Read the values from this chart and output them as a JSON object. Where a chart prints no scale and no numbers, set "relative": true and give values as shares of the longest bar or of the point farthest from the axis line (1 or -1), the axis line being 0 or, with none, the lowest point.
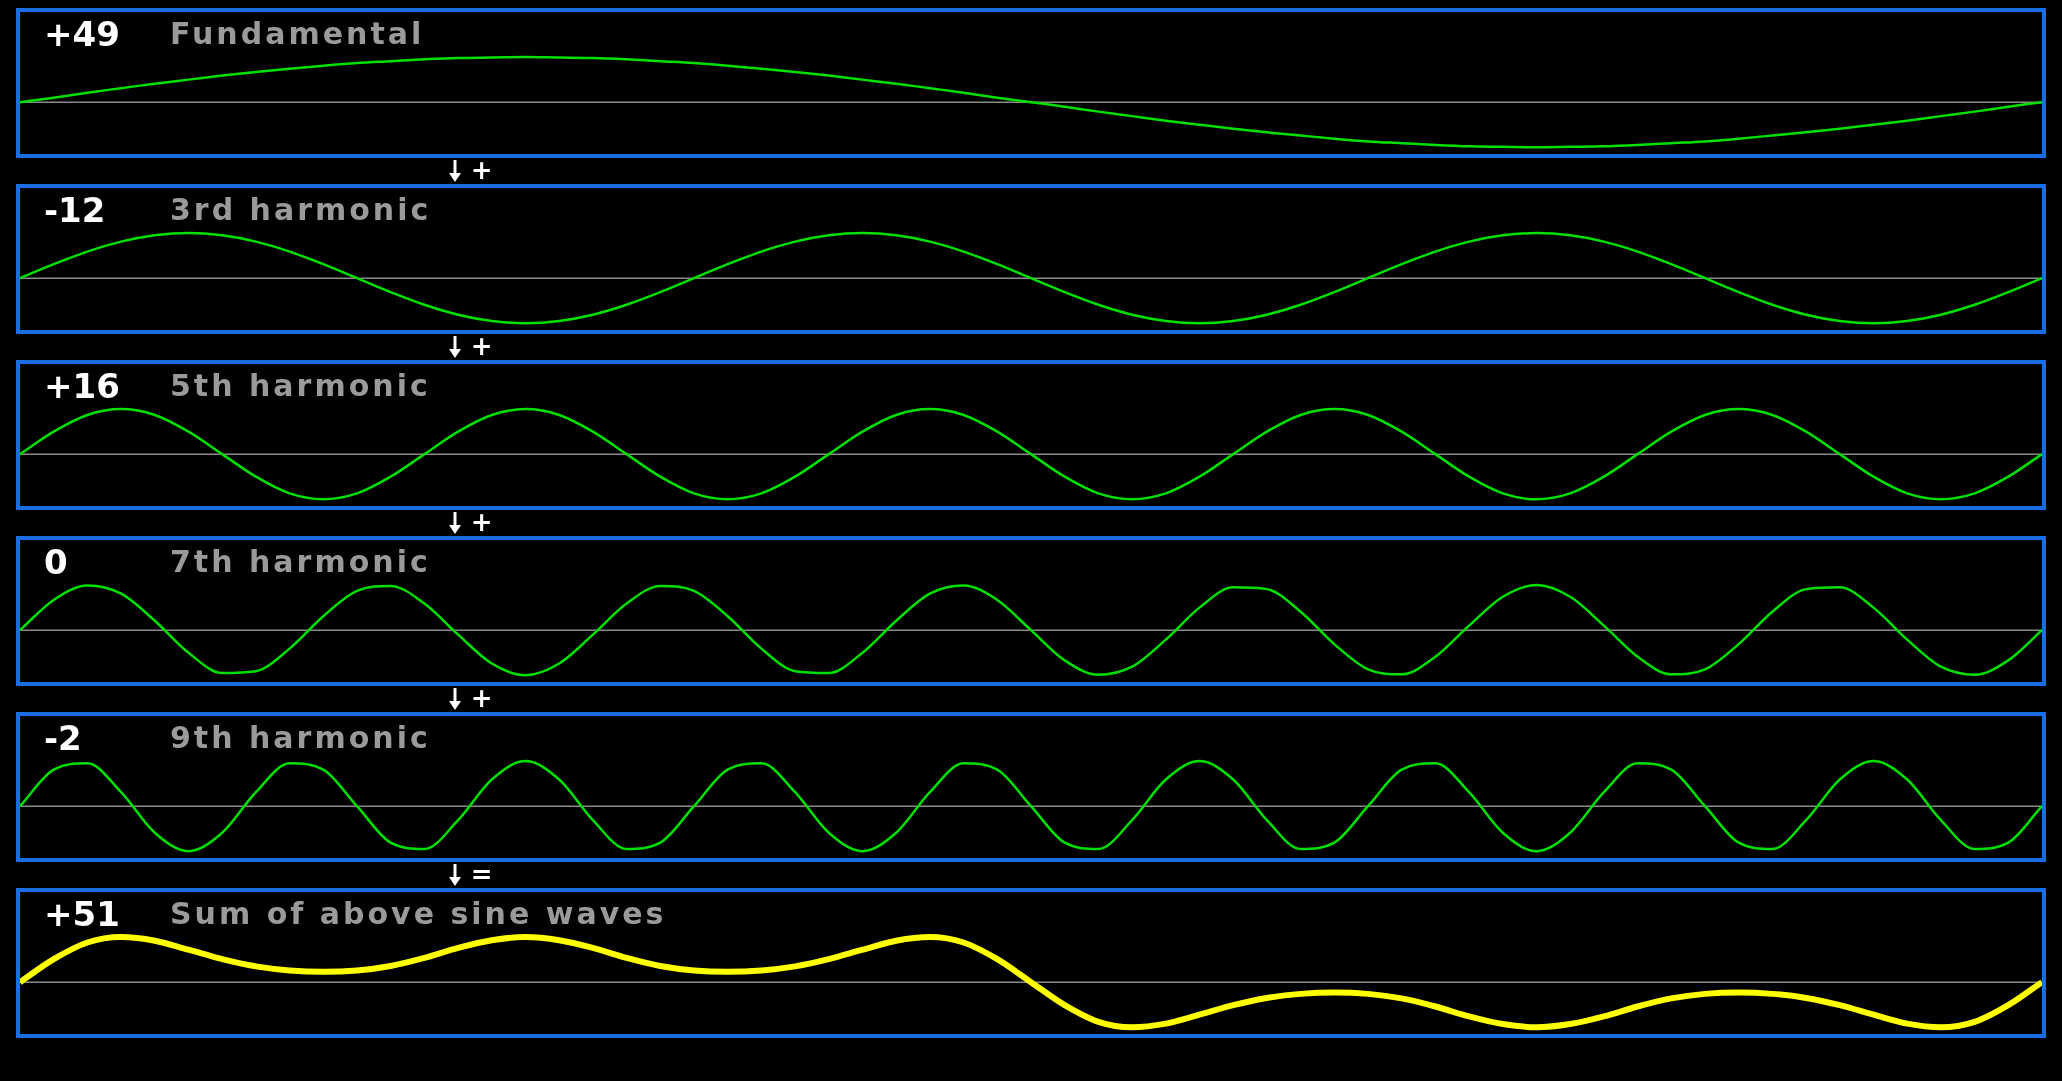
{
  "chart_data": [
    {
      "type": "line",
      "title": "Fundamental",
      "relative": true,
      "annotations": [
        "+49",
        "+"
      ],
      "marker": "none",
      "categories": [
        null,
        null,
        null,
        null,
        null,
        null,
        null,
        null,
        null,
        null,
        null,
        null,
        null,
        null,
        null,
        null,
        null,
        null,
        null,
        null,
        null,
        null,
        null,
        null,
        null,
        null,
        null,
        null,
        null,
        null,
        null,
        null,
        null,
        null,
        null,
        null,
        null,
        null,
        null,
        null,
        null,
        null,
        null,
        null,
        null,
        null,
        null,
        null,
        null,
        null,
        null,
        null,
        null,
        null,
        null,
        null,
        null,
        null,
        null,
        null,
        null
      ],
      "series": [
        {
          "color": "#00e000",
          "values": [
            0,
            0.1,
            0.21,
            0.31,
            0.41,
            0.5,
            0.59,
            0.67,
            0.74,
            0.81,
            0.87,
            0.91,
            0.95,
            0.98,
            0.99,
            1,
            0.99,
            0.98,
            0.95,
            0.91,
            0.87,
            0.81,
            0.74,
            0.67,
            0.59,
            0.5,
            0.41,
            0.31,
            0.21,
            0.1,
            0,
            -0.1,
            -0.21,
            -0.31,
            -0.41,
            -0.5,
            -0.59,
            -0.67,
            -0.74,
            -0.81,
            -0.87,
            -0.91,
            -0.95,
            -0.98,
            -0.99,
            -1,
            -0.99,
            -0.98,
            -0.95,
            -0.91,
            -0.87,
            -0.81,
            -0.74,
            -0.67,
            -0.59,
            -0.5,
            -0.41,
            -0.31,
            -0.21,
            -0.1,
            0
          ]
        }
      ]
    },
    {
      "type": "line",
      "title": "3rd harmonic",
      "relative": true,
      "annotations": [
        "-12",
        "+"
      ],
      "marker": "none",
      "categories": [
        null,
        null,
        null,
        null,
        null,
        null,
        null,
        null,
        null,
        null,
        null,
        null,
        null,
        null,
        null,
        null,
        null,
        null,
        null,
        null,
        null,
        null,
        null,
        null,
        null,
        null,
        null,
        null,
        null,
        null,
        null,
        null,
        null,
        null,
        null,
        null,
        null,
        null,
        null,
        null,
        null,
        null,
        null,
        null,
        null,
        null,
        null,
        null,
        null,
        null,
        null,
        null,
        null,
        null,
        null,
        null,
        null,
        null,
        null,
        null,
        null
      ],
      "series": [
        {
          "color": "#00e000",
          "values": [
            0,
            0.31,
            0.59,
            0.81,
            0.95,
            1,
            0.95,
            0.81,
            0.59,
            0.31,
            0,
            -0.31,
            -0.59,
            -0.81,
            -0.95,
            -1,
            -0.95,
            -0.81,
            -0.59,
            -0.31,
            0,
            0.31,
            0.59,
            0.81,
            0.95,
            1,
            0.95,
            0.81,
            0.59,
            0.31,
            0,
            -0.31,
            -0.59,
            -0.81,
            -0.95,
            -1,
            -0.95,
            -0.81,
            -0.59,
            -0.31,
            0,
            0.31,
            0.59,
            0.81,
            0.95,
            1,
            0.95,
            0.81,
            0.59,
            0.31,
            0,
            -0.31,
            -0.59,
            -0.81,
            -0.95,
            -1,
            -0.95,
            -0.81,
            -0.59,
            -0.31,
            0
          ]
        }
      ]
    },
    {
      "type": "line",
      "title": "5th harmonic",
      "relative": true,
      "annotations": [
        "+16",
        "+"
      ],
      "marker": "none",
      "categories": [
        null,
        null,
        null,
        null,
        null,
        null,
        null,
        null,
        null,
        null,
        null,
        null,
        null,
        null,
        null,
        null,
        null,
        null,
        null,
        null,
        null,
        null,
        null,
        null,
        null,
        null,
        null,
        null,
        null,
        null,
        null,
        null,
        null,
        null,
        null,
        null,
        null,
        null,
        null,
        null,
        null,
        null,
        null,
        null,
        null,
        null,
        null,
        null,
        null,
        null,
        null,
        null,
        null,
        null,
        null,
        null,
        null,
        null,
        null,
        null,
        null
      ],
      "series": [
        {
          "color": "#00e000",
          "values": [
            0,
            0.5,
            0.87,
            1,
            0.87,
            0.5,
            0,
            -0.5,
            -0.87,
            -1,
            -0.87,
            -0.5,
            0,
            0.5,
            0.87,
            1,
            0.87,
            0.5,
            0,
            -0.5,
            -0.87,
            -1,
            -0.87,
            -0.5,
            0,
            0.5,
            0.87,
            1,
            0.87,
            0.5,
            0,
            -0.5,
            -0.87,
            -1,
            -0.87,
            -0.5,
            0,
            0.5,
            0.87,
            1,
            0.87,
            0.5,
            0,
            -0.5,
            -0.87,
            -1,
            -0.87,
            -0.5,
            0,
            0.5,
            0.87,
            1,
            0.87,
            0.5,
            0,
            -0.5,
            -0.87,
            -1,
            -0.87,
            -0.5,
            0
          ]
        }
      ]
    },
    {
      "type": "line",
      "title": "7th harmonic",
      "relative": true,
      "annotations": [
        "0",
        "+"
      ],
      "marker": "none",
      "categories": [
        null,
        null,
        null,
        null,
        null,
        null,
        null,
        null,
        null,
        null,
        null,
        null,
        null,
        null,
        null,
        null,
        null,
        null,
        null,
        null,
        null,
        null,
        null,
        null,
        null,
        null,
        null,
        null,
        null,
        null,
        null,
        null,
        null,
        null,
        null,
        null,
        null,
        null,
        null,
        null,
        null,
        null,
        null,
        null,
        null,
        null,
        null,
        null,
        null,
        null,
        null,
        null,
        null,
        null,
        null,
        null,
        null,
        null,
        null,
        null,
        null
      ],
      "series": [
        {
          "color": "#00e000",
          "values": [
            0,
            0.67,
            0.99,
            0.81,
            0.21,
            -0.5,
            -0.95,
            -0.91,
            -0.41,
            0.31,
            0.87,
            0.98,
            0.59,
            -0.1,
            -0.74,
            -1,
            -0.74,
            -0.1,
            0.59,
            0.98,
            0.87,
            0.31,
            -0.41,
            -0.91,
            -0.95,
            -0.5,
            0.21,
            0.81,
            0.99,
            0.67,
            0,
            -0.67,
            -0.99,
            -0.81,
            -0.21,
            0.5,
            0.95,
            0.91,
            0.41,
            -0.31,
            -0.87,
            -0.98,
            -0.59,
            0.1,
            0.74,
            1,
            0.74,
            0.1,
            -0.59,
            -0.98,
            -0.87,
            -0.31,
            0.41,
            0.91,
            0.95,
            0.5,
            -0.21,
            -0.81,
            -0.99,
            -0.67,
            0
          ]
        }
      ]
    },
    {
      "type": "line",
      "title": "9th harmonic",
      "relative": true,
      "annotations": [
        "-2",
        "="
      ],
      "marker": "none",
      "categories": [
        null,
        null,
        null,
        null,
        null,
        null,
        null,
        null,
        null,
        null,
        null,
        null,
        null,
        null,
        null,
        null,
        null,
        null,
        null,
        null,
        null,
        null,
        null,
        null,
        null,
        null,
        null,
        null,
        null,
        null,
        null,
        null,
        null,
        null,
        null,
        null,
        null,
        null,
        null,
        null,
        null,
        null,
        null,
        null,
        null,
        null,
        null,
        null,
        null,
        null,
        null,
        null,
        null,
        null,
        null,
        null,
        null,
        null,
        null,
        null,
        null
      ],
      "series": [
        {
          "color": "#00e000",
          "values": [
            0,
            0.81,
            0.95,
            0.31,
            -0.59,
            -1,
            -0.59,
            0.31,
            0.95,
            0.81,
            0,
            -0.81,
            -0.95,
            -0.31,
            0.59,
            1,
            0.59,
            -0.31,
            -0.95,
            -0.81,
            0,
            0.81,
            0.95,
            0.31,
            -0.59,
            -1,
            -0.59,
            0.31,
            0.95,
            0.81,
            0,
            -0.81,
            -0.95,
            -0.31,
            0.59,
            1,
            0.59,
            -0.31,
            -0.95,
            -0.81,
            0,
            0.81,
            0.95,
            0.31,
            -0.59,
            -1,
            -0.59,
            0.31,
            0.95,
            0.81,
            0,
            -0.81,
            -0.95,
            -0.31,
            0.59,
            1,
            0.59,
            -0.31,
            -0.95,
            -0.81,
            0
          ]
        }
      ]
    },
    {
      "type": "line",
      "title": "Sum of above sine waves",
      "relative": true,
      "annotations": [
        "+51"
      ],
      "marker": "none",
      "categories": [
        null,
        null,
        null,
        null,
        null,
        null,
        null,
        null,
        null,
        null,
        null,
        null,
        null,
        null,
        null,
        null,
        null,
        null,
        null,
        null,
        null,
        null,
        null,
        null,
        null,
        null,
        null,
        null,
        null,
        null,
        null,
        null,
        null,
        null,
        null,
        null,
        null,
        null,
        null,
        null,
        null,
        null,
        null,
        null,
        null,
        null,
        null,
        null,
        null,
        null,
        null,
        null,
        null,
        null,
        null,
        null,
        null,
        null,
        null,
        null,
        null
      ],
      "series": [
        {
          "color": "#ffff00",
          "values": [
            0,
            0.51,
            0.88,
            1,
            0.92,
            0.72,
            0.51,
            0.35,
            0.26,
            0.23,
            0.26,
            0.36,
            0.54,
            0.76,
            0.93,
            1,
            0.93,
            0.76,
            0.54,
            0.36,
            0.26,
            0.23,
            0.26,
            0.35,
            0.51,
            0.72,
            0.92,
            1,
            0.88,
            0.51,
            0,
            -0.51,
            -0.88,
            -1,
            -0.92,
            -0.72,
            -0.51,
            -0.35,
            -0.26,
            -0.23,
            -0.26,
            -0.36,
            -0.54,
            -0.76,
            -0.93,
            -1,
            -0.93,
            -0.76,
            -0.54,
            -0.36,
            -0.26,
            -0.23,
            -0.26,
            -0.35,
            -0.51,
            -0.72,
            -0.92,
            -1,
            -0.88,
            -0.51,
            0
          ]
        }
      ]
    }
  ]
}
